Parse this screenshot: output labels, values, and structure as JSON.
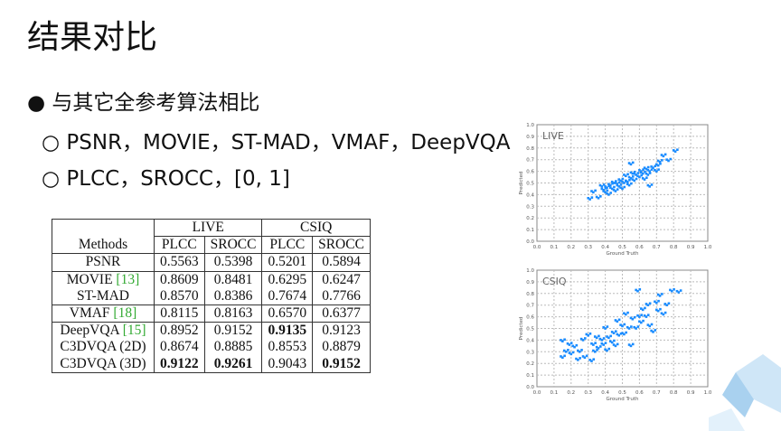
{
  "title": "结果对比",
  "bullet": "与其它全参考算法相比",
  "sub_bullets": [
    "PSNR，MOVIE，ST-MAD，VMAF，DeepVQA",
    "PLCC，SROCC，[0, 1]"
  ],
  "table": {
    "datasets": [
      "LIVE",
      "CSIQ"
    ],
    "methods_header": "Methods",
    "metrics": [
      "PLCC",
      "SROCC",
      "PLCC",
      "SROCC"
    ],
    "rows": [
      {
        "method": "PSNR",
        "ref": "",
        "values": [
          "0.5563",
          "0.5398",
          "0.5201",
          "0.5894"
        ],
        "bold": []
      },
      {
        "method": "MOVIE ",
        "ref": "[13]",
        "values": [
          "0.8609",
          "0.8481",
          "0.6295",
          "0.6247"
        ],
        "bold": []
      },
      {
        "method": "ST-MAD",
        "ref": "",
        "values": [
          "0.8570",
          "0.8386",
          "0.7674",
          "0.7766"
        ],
        "bold": []
      },
      {
        "method": "VMAF ",
        "ref": "[18]",
        "values": [
          "0.8115",
          "0.8163",
          "0.6570",
          "0.6377"
        ],
        "bold": []
      },
      {
        "method": "DeepVQA ",
        "ref": "[15]",
        "values": [
          "0.8952",
          "0.9152",
          "0.9135",
          "0.9123"
        ],
        "bold": [
          2
        ]
      },
      {
        "method": "C3DVQA (2D)",
        "ref": "",
        "values": [
          "0.8674",
          "0.8885",
          "0.8553",
          "0.8879"
        ],
        "bold": []
      },
      {
        "method": "C3DVQA (3D)",
        "ref": "",
        "values": [
          "0.9122",
          "0.9261",
          "0.9043",
          "0.9152"
        ],
        "bold": [
          0,
          1,
          3
        ]
      }
    ]
  },
  "chart_data": [
    {
      "type": "scatter",
      "title": "LIVE",
      "xlabel": "Ground Truth",
      "ylabel": "Predicted",
      "xlim": [
        0,
        1
      ],
      "ylim": [
        0,
        1
      ],
      "grid": true,
      "color": "#1a8cff",
      "ticks": [
        "0.0",
        "0.1",
        "0.2",
        "0.3",
        "0.4",
        "0.5",
        "0.6",
        "0.7",
        "0.8",
        "0.9",
        "1.0"
      ],
      "points": [
        [
          0.31,
          0.36
        ],
        [
          0.33,
          0.42
        ],
        [
          0.36,
          0.37
        ],
        [
          0.38,
          0.47
        ],
        [
          0.39,
          0.44
        ],
        [
          0.4,
          0.42
        ],
        [
          0.41,
          0.46
        ],
        [
          0.42,
          0.4
        ],
        [
          0.43,
          0.48
        ],
        [
          0.44,
          0.45
        ],
        [
          0.45,
          0.5
        ],
        [
          0.46,
          0.43
        ],
        [
          0.47,
          0.49
        ],
        [
          0.48,
          0.47
        ],
        [
          0.49,
          0.52
        ],
        [
          0.5,
          0.45
        ],
        [
          0.51,
          0.5
        ],
        [
          0.52,
          0.56
        ],
        [
          0.53,
          0.51
        ],
        [
          0.54,
          0.48
        ],
        [
          0.55,
          0.54
        ],
        [
          0.55,
          0.66
        ],
        [
          0.56,
          0.58
        ],
        [
          0.57,
          0.52
        ],
        [
          0.58,
          0.57
        ],
        [
          0.6,
          0.55
        ],
        [
          0.61,
          0.6
        ],
        [
          0.62,
          0.58
        ],
        [
          0.63,
          0.53
        ],
        [
          0.64,
          0.62
        ],
        [
          0.65,
          0.57
        ],
        [
          0.66,
          0.47
        ],
        [
          0.66,
          0.6
        ],
        [
          0.68,
          0.63
        ],
        [
          0.7,
          0.6
        ],
        [
          0.71,
          0.65
        ],
        [
          0.72,
          0.68
        ],
        [
          0.74,
          0.73
        ],
        [
          0.77,
          0.69
        ],
        [
          0.81,
          0.77
        ]
      ]
    },
    {
      "type": "scatter",
      "title": "CSIQ",
      "xlabel": "Ground Truth",
      "ylabel": "Predicted",
      "xlim": [
        0,
        1
      ],
      "ylim": [
        0,
        1
      ],
      "grid": true,
      "color": "#1a8cff",
      "ticks": [
        "0.0",
        "0.1",
        "0.2",
        "0.3",
        "0.4",
        "0.5",
        "0.6",
        "0.7",
        "0.8",
        "0.9",
        "1.0"
      ],
      "points": [
        [
          0.15,
          0.25
        ],
        [
          0.15,
          0.39
        ],
        [
          0.17,
          0.3
        ],
        [
          0.19,
          0.36
        ],
        [
          0.2,
          0.28
        ],
        [
          0.22,
          0.34
        ],
        [
          0.24,
          0.23
        ],
        [
          0.25,
          0.3
        ],
        [
          0.27,
          0.4
        ],
        [
          0.28,
          0.25
        ],
        [
          0.3,
          0.44
        ],
        [
          0.32,
          0.22
        ],
        [
          0.33,
          0.36
        ],
        [
          0.34,
          0.3
        ],
        [
          0.35,
          0.42
        ],
        [
          0.36,
          0.33
        ],
        [
          0.38,
          0.4
        ],
        [
          0.39,
          0.36
        ],
        [
          0.4,
          0.5
        ],
        [
          0.41,
          0.31
        ],
        [
          0.42,
          0.42
        ],
        [
          0.44,
          0.38
        ],
        [
          0.45,
          0.46
        ],
        [
          0.46,
          0.35
        ],
        [
          0.47,
          0.56
        ],
        [
          0.48,
          0.44
        ],
        [
          0.5,
          0.52
        ],
        [
          0.51,
          0.45
        ],
        [
          0.52,
          0.62
        ],
        [
          0.54,
          0.5
        ],
        [
          0.55,
          0.35
        ],
        [
          0.56,
          0.58
        ],
        [
          0.58,
          0.5
        ],
        [
          0.59,
          0.82
        ],
        [
          0.6,
          0.6
        ],
        [
          0.61,
          0.55
        ],
        [
          0.62,
          0.66
        ],
        [
          0.64,
          0.6
        ],
        [
          0.65,
          0.7
        ],
        [
          0.66,
          0.52
        ],
        [
          0.68,
          0.47
        ],
        [
          0.7,
          0.72
        ],
        [
          0.71,
          0.65
        ],
        [
          0.72,
          0.78
        ],
        [
          0.74,
          0.62
        ],
        [
          0.76,
          0.7
        ],
        [
          0.79,
          0.82
        ],
        [
          0.83,
          0.81
        ]
      ]
    }
  ]
}
